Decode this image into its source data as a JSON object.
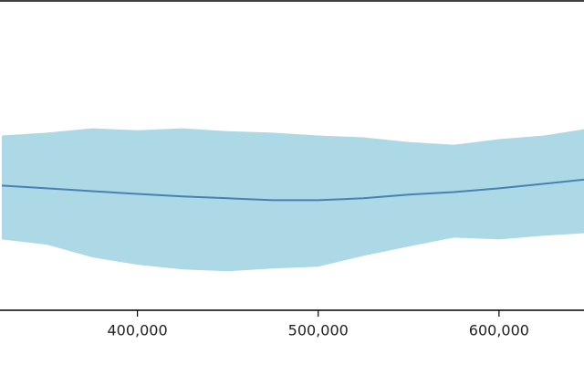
{
  "chart_data": {
    "type": "line",
    "x": [
      325000,
      350000,
      375000,
      400000,
      425000,
      450000,
      475000,
      500000,
      525000,
      550000,
      575000,
      600000,
      625000,
      650000
    ],
    "band": {
      "color": "#add8e6",
      "upper": [
        56.5,
        57.4,
        58.8,
        58.2,
        58.8,
        57.9,
        57.4,
        56.5,
        55.9,
        54.4,
        53.5,
        55.3,
        56.5,
        58.8
      ],
      "lower": [
        22.9,
        21.2,
        17.1,
        14.7,
        13.2,
        12.6,
        13.5,
        14.1,
        17.6,
        20.6,
        23.5,
        22.9,
        24.1,
        25.0
      ]
    },
    "series": [
      {
        "color": "#4682b4",
        "values": [
          40.3,
          39.4,
          38.5,
          37.6,
          36.8,
          36.2,
          35.6,
          35.6,
          36.2,
          37.4,
          38.2,
          39.4,
          40.9,
          42.4
        ]
      }
    ],
    "xlim": [
      324000,
      647000
    ],
    "ylim": [
      0,
      100
    ],
    "xticks": [
      {
        "value": 400000,
        "label": "400,000"
      },
      {
        "value": 500000,
        "label": "500,000"
      },
      {
        "value": 600000,
        "label": "600,000"
      }
    ]
  }
}
